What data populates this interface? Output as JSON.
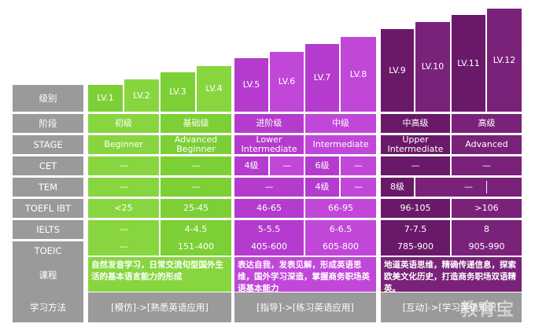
{
  "labels": {
    "level": "级别",
    "stage_cn": "阶段",
    "stage": "STAGE",
    "cet": "CET",
    "tem": "TEM",
    "toefl": "TOEFL IBT",
    "ielts": "IELTS",
    "toeic": "TOEIC",
    "course": "课程",
    "method": "学习方法"
  },
  "levels": [
    "LV.1",
    "LV.2",
    "LV.3",
    "LV.4",
    "LV.5",
    "LV.6",
    "LV.7",
    "LV.8",
    "LV.9",
    "LV.10",
    "LV.11",
    "LV.12"
  ],
  "stage_cn": [
    "初级",
    "基础级",
    "进阶级",
    "中级",
    "中高级",
    "高级"
  ],
  "stage_en": [
    "Beginner",
    "Advanced\nBeginner",
    "Lower\nIntermediate",
    "Intermediate",
    "Upper\nIntermediate",
    "Advanced"
  ],
  "cet": [
    "—",
    "—",
    "4级",
    "—",
    "6级",
    "—",
    "—",
    "—"
  ],
  "tem": [
    "—",
    "—",
    "—",
    "4级",
    "—",
    "8级",
    "—"
  ],
  "toefl": [
    "<25",
    "25-45",
    "46-65",
    "66-95",
    "96-105",
    ">106"
  ],
  "ielts": [
    "—",
    "4-4.5",
    "5-5.5",
    "6-6.5",
    "7-7.5",
    "8"
  ],
  "toeic": [
    "—",
    "151-400",
    "405-600",
    "605-800",
    "785-900",
    "905-990"
  ],
  "course": [
    "自然发音学习，日常交流句型国外生活的基本语言能力的形成",
    "表达自我，发表见解，形成英语思维，国外学习深造，掌握商务职场英语基本能力",
    "地道英语思维，精确传递信息，探索欧美文化历史，打造商务职场双语精英。"
  ],
  "method": [
    "[模仿]->[熟悉英语应用]",
    "[指导]->[练习英语应用]",
    "[互动]->[学习英语知识]"
  ],
  "watermark": "教育宝",
  "colors": {
    "label_gray": "#9a9a9a",
    "green": "#88d63f",
    "purple": "#c147d9",
    "dark_purple": "#7a2279"
  }
}
